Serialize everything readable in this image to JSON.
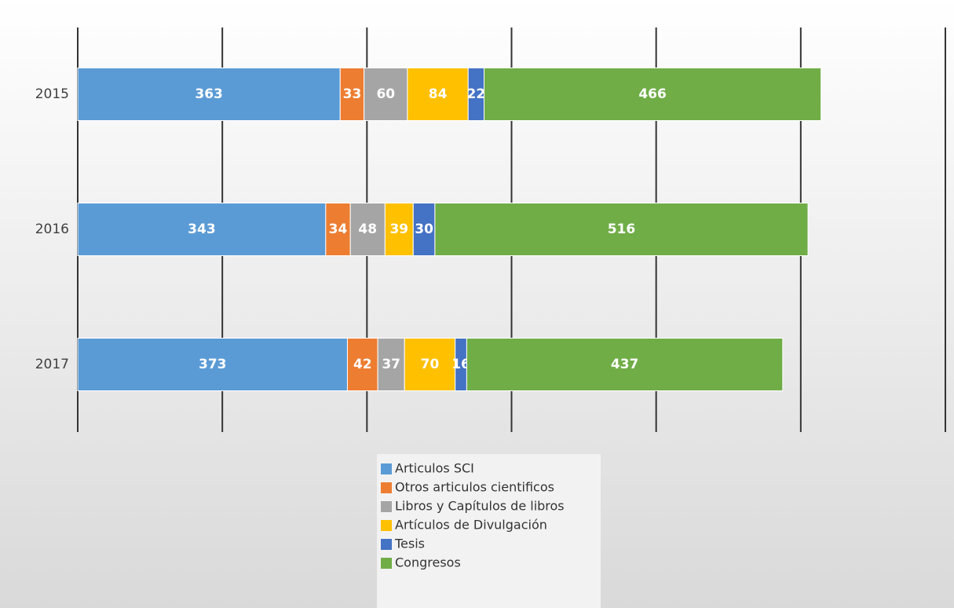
{
  "chart_data": {
    "type": "stacked-barh",
    "categories": [
      "2015",
      "2016",
      "2017"
    ],
    "series": [
      {
        "name": "Articulos SCI",
        "color": "#5b9bd5",
        "values": [
          363,
          343,
          373
        ]
      },
      {
        "name": "Otros articulos cientificos",
        "color": "#ed7d31",
        "values": [
          33,
          34,
          42
        ]
      },
      {
        "name": "Libros y Capítulos de libros",
        "color": "#a5a5a5",
        "values": [
          60,
          48,
          37
        ]
      },
      {
        "name": "Artículos de Divulgación",
        "color": "#ffc000",
        "values": [
          84,
          39,
          70
        ]
      },
      {
        "name": "Tesis",
        "color": "#4472c4",
        "values": [
          22,
          30,
          16
        ]
      },
      {
        "name": "Congresos",
        "color": "#70ad47",
        "values": [
          466,
          516,
          437
        ]
      }
    ],
    "xlim": [
      0,
      1200
    ],
    "xticks": [
      0,
      200,
      400,
      600,
      800,
      1000,
      1200
    ],
    "grid": true,
    "legend": "bottom"
  }
}
